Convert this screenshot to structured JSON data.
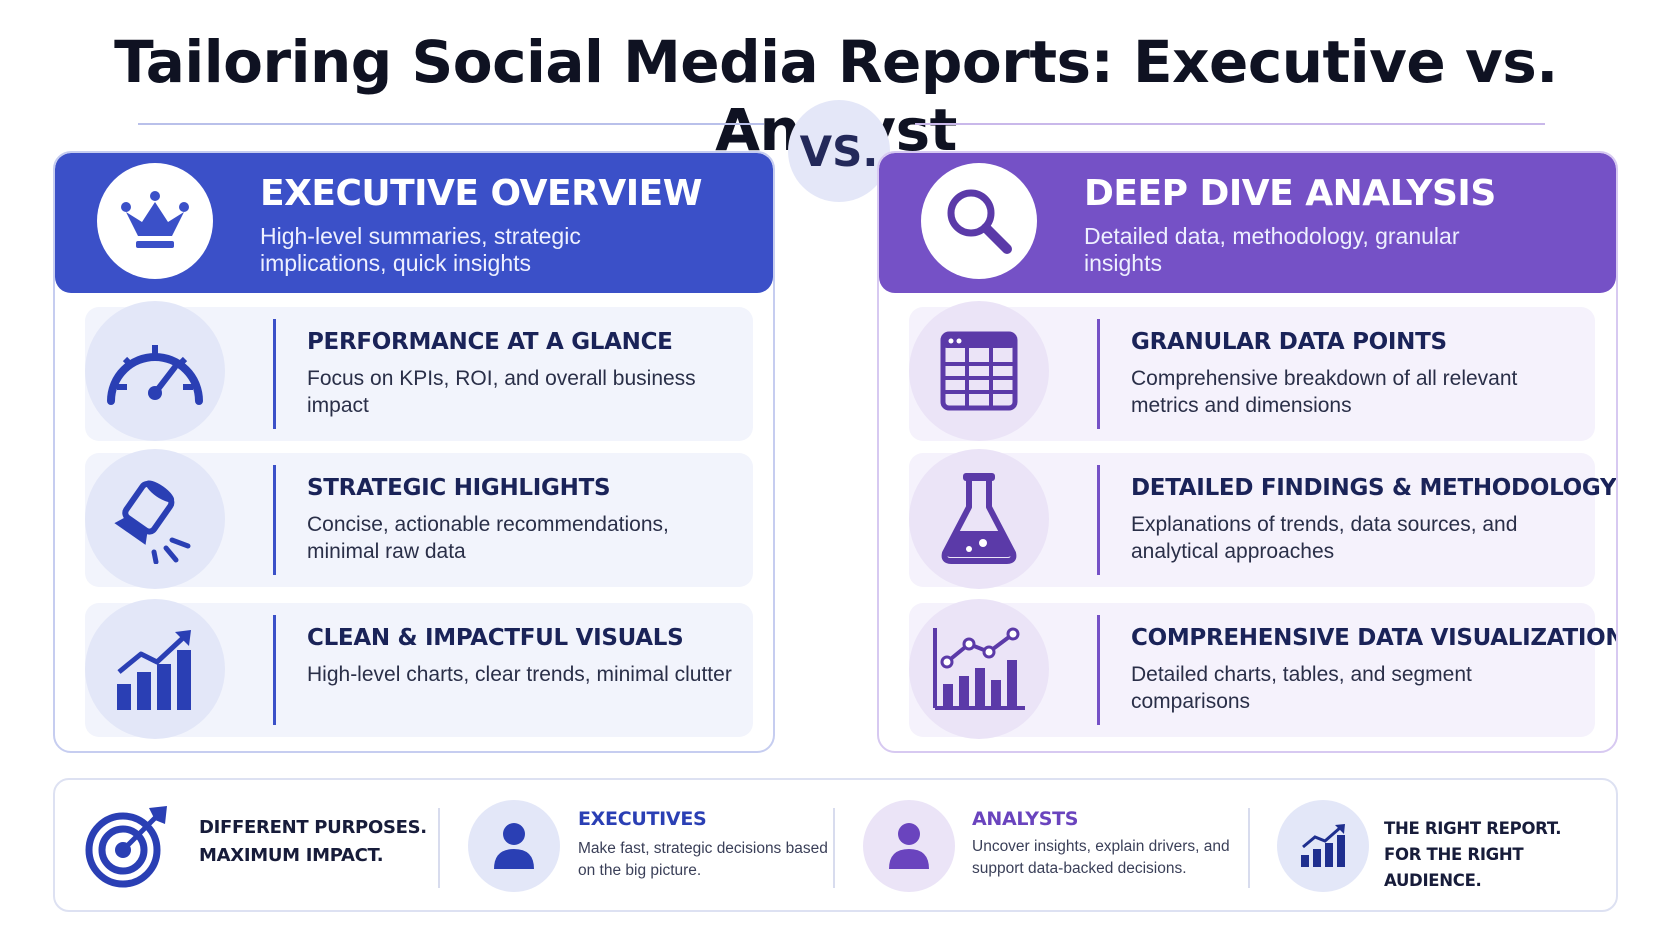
{
  "title": "Tailoring Social Media Reports: Executive vs. Analyst",
  "vs_label": "VS.",
  "colors": {
    "executive": "#3b50c8",
    "analyst": "#7551c6",
    "navy": "#1a2358"
  },
  "executive": {
    "title": "EXECUTIVE OVERVIEW",
    "subtitle": "High-level summaries, strategic implications, quick insights",
    "icon": "crown-icon",
    "items": [
      {
        "icon": "gauge-icon",
        "title": "PERFORMANCE AT A GLANCE",
        "desc": "Focus on KPIs, ROI, and overall business impact"
      },
      {
        "icon": "spotlight-icon",
        "title": "STRATEGIC HIGHLIGHTS",
        "desc": "Concise, actionable recommendations, minimal raw data"
      },
      {
        "icon": "growth-chart-icon",
        "title": "CLEAN & IMPACTFUL VISUALS",
        "desc": "High-level charts, clear trends, minimal clutter"
      }
    ]
  },
  "analyst": {
    "title": "DEEP DIVE ANALYSIS",
    "subtitle": "Detailed data, methodology, granular insights",
    "icon": "magnifier-icon",
    "items": [
      {
        "icon": "table-icon",
        "title": "GRANULAR DATA POINTS",
        "desc": "Comprehensive breakdown of all relevant metrics and dimensions"
      },
      {
        "icon": "flask-icon",
        "title": "DETAILED FINDINGS & METHODOLOGY",
        "desc": "Explanations of trends, data sources, and analytical approaches"
      },
      {
        "icon": "combo-chart-icon",
        "title": "COMPREHENSIVE DATA VISUALIZATION",
        "desc": "Detailed charts, tables, and segment comparisons"
      }
    ]
  },
  "footer": {
    "purpose_line1": "DIFFERENT PURPOSES.",
    "purpose_line2": "MAXIMUM IMPACT.",
    "executives_title": "EXECUTIVES",
    "executives_desc": "Make fast, strategic decisions based on the big picture.",
    "analysts_title": "ANALYSTS",
    "analysts_desc": "Uncover insights, explain drivers, and support data-backed decisions.",
    "right_line1": "THE RIGHT REPORT.",
    "right_line2": "FOR THE RIGHT AUDIENCE."
  }
}
